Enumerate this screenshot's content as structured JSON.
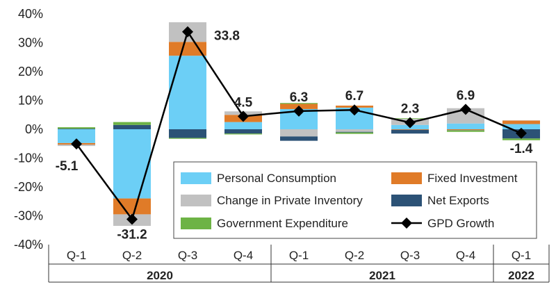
{
  "chart_data": {
    "type": "bar",
    "stacked": true,
    "ylim": [
      -40,
      40
    ],
    "yticks": [
      "40%",
      "30%",
      "20%",
      "10%",
      "0%",
      "-10%",
      "-20%",
      "-30%",
      "-40%"
    ],
    "ytick_values": [
      40,
      30,
      20,
      10,
      0,
      -10,
      -20,
      -30,
      -40
    ],
    "categories": [
      "Q-1",
      "Q-2",
      "Q-3",
      "Q-4",
      "Q-1",
      "Q-2",
      "Q-3",
      "Q-4",
      "Q-1"
    ],
    "years": [
      {
        "label": "2020",
        "start": 0,
        "end": 3
      },
      {
        "label": "2021",
        "start": 4,
        "end": 7
      },
      {
        "label": "2022",
        "start": 8,
        "end": 8
      }
    ],
    "series": [
      {
        "name": "Personal Consumption",
        "color": "#6ccff6",
        "values": [
          -4.8,
          -24.0,
          25.5,
          2.5,
          7.0,
          7.5,
          1.5,
          2.0,
          1.8
        ]
      },
      {
        "name": "Fixed Investment",
        "color": "#e07b28",
        "values": [
          -0.5,
          -5.5,
          4.8,
          2.5,
          1.8,
          0.7,
          -0.2,
          -0.3,
          1.2
        ]
      },
      {
        "name": "Change in Private Inventory",
        "color": "#c1c1c1",
        "values": [
          -0.5,
          -4.0,
          6.8,
          1.2,
          -2.5,
          -0.9,
          2.1,
          5.3,
          0.1
        ]
      },
      {
        "name": "Net Exports",
        "color": "#2c5276",
        "values": [
          0.2,
          1.5,
          -3.0,
          -1.5,
          -1.5,
          -0.2,
          -1.3,
          -0.1,
          -3.2
        ]
      },
      {
        "name": "Government Expenditure",
        "color": "#6db345",
        "values": [
          0.5,
          1.0,
          -0.3,
          -0.3,
          0.3,
          -0.5,
          0.2,
          -0.5,
          -0.6
        ]
      }
    ],
    "line": {
      "name": "GPD Growth",
      "values": [
        -5.1,
        -31.2,
        33.8,
        4.5,
        6.3,
        6.7,
        2.3,
        6.9,
        -1.4
      ]
    },
    "data_labels": [
      "-5.1",
      "-31.2",
      "33.8",
      "4.5",
      "6.3",
      "6.7",
      "2.3",
      "6.9",
      "-1.4"
    ],
    "label_positions": [
      "below",
      "below",
      "right",
      "above",
      "above",
      "above",
      "above",
      "above",
      "below"
    ],
    "legend": {
      "position": "bottom-right",
      "items": [
        {
          "label": "Personal Consumption",
          "kind": "box",
          "color": "#6ccff6"
        },
        {
          "label": "Fixed Investment",
          "kind": "box",
          "color": "#e07b28"
        },
        {
          "label": "Change in Private Inventory",
          "kind": "box",
          "color": "#c1c1c1"
        },
        {
          "label": "Net Exports",
          "kind": "box",
          "color": "#2c5276"
        },
        {
          "label": "Government Expenditure",
          "kind": "box",
          "color": "#6db345"
        },
        {
          "label": "GPD Growth",
          "kind": "line",
          "color": "#000000"
        }
      ]
    },
    "grid": false
  }
}
